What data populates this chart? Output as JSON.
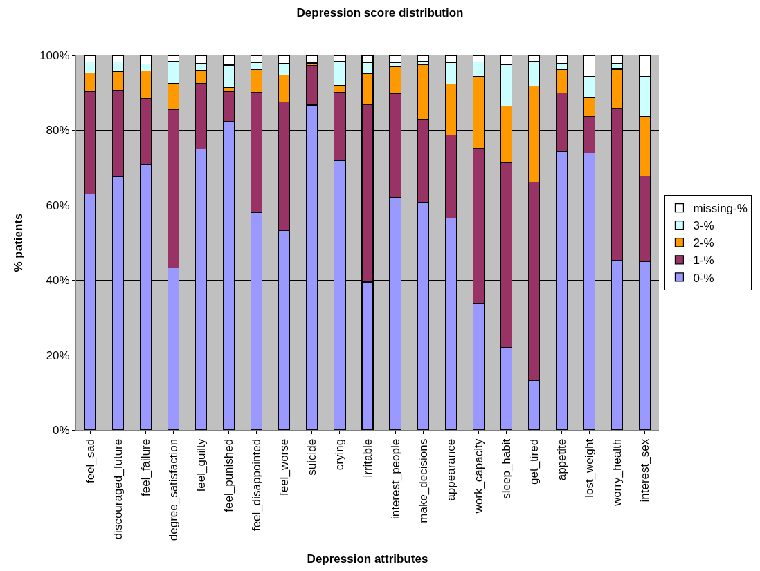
{
  "chart_data": {
    "type": "bar",
    "title": "Depression score distribution",
    "xlabel": "Depression attributes",
    "ylabel": "% patients",
    "categories": [
      "feel_sad",
      "discouraged_future",
      "feel_failure",
      "degree_satisfaction",
      "feel_guilty",
      "feel_punished",
      "feel_disappointed",
      "feel_worse",
      "suicide",
      "crying",
      "irritable",
      "interest_people",
      "make_decisions",
      "appearance",
      "work_capacity",
      "sleep_habit",
      "get_tired",
      "appetite",
      "lost_weight",
      "worry_health",
      "interest_sex"
    ],
    "stacked": true,
    "series": [
      {
        "name": "0-%",
        "color": "#9999ff",
        "values": [
          63,
          67.7,
          71,
          43.3,
          75,
          82.3,
          58,
          53.3,
          86.7,
          71.9,
          39.5,
          62,
          60.8,
          56.5,
          33.7,
          22.1,
          13.2,
          74.2,
          73.9,
          45.3,
          44.9
        ]
      },
      {
        "name": "1-%",
        "color": "#993366",
        "values": [
          27.3,
          22.9,
          17.4,
          42.2,
          17.6,
          8,
          32.2,
          34.2,
          10.6,
          18.2,
          47.3,
          27.7,
          22.2,
          22.2,
          41.5,
          49.2,
          53,
          15.8,
          9.8,
          40.5,
          22.9
        ]
      },
      {
        "name": "2-%",
        "color": "#ff9900",
        "values": [
          5,
          5.1,
          7.5,
          7,
          3.4,
          1.1,
          6,
          7.2,
          0.5,
          1.8,
          8.3,
          7.2,
          14.6,
          13.7,
          19.1,
          15.2,
          25.6,
          6.2,
          4.9,
          10.5,
          15.9
        ]
      },
      {
        "name": "3-%",
        "color": "#ccffff",
        "values": [
          3,
          2.6,
          1.8,
          5.9,
          1.9,
          6,
          1.9,
          3.2,
          0.2,
          6.6,
          3,
          1.2,
          0.9,
          5.7,
          3.9,
          11.1,
          6.6,
          1.7,
          5.7,
          1.5,
          10.6
        ]
      },
      {
        "name": "missing-%",
        "color": "#ffffff",
        "values": [
          1.7,
          1.7,
          2.3,
          1.6,
          2.1,
          2.6,
          1.9,
          2.1,
          2,
          1.5,
          1.9,
          1.9,
          1.5,
          1.9,
          1.8,
          2.4,
          1.6,
          2.1,
          5.7,
          2.2,
          5.7
        ]
      }
    ],
    "ylim": [
      0,
      100
    ],
    "yticks": [
      {
        "value": 0,
        "label": "0%"
      },
      {
        "value": 20,
        "label": "20%"
      },
      {
        "value": 40,
        "label": "40%"
      },
      {
        "value": 60,
        "label": "60%"
      },
      {
        "value": 80,
        "label": "80%"
      },
      {
        "value": 100,
        "label": "100%"
      }
    ],
    "grid": "y",
    "legend": "right"
  }
}
